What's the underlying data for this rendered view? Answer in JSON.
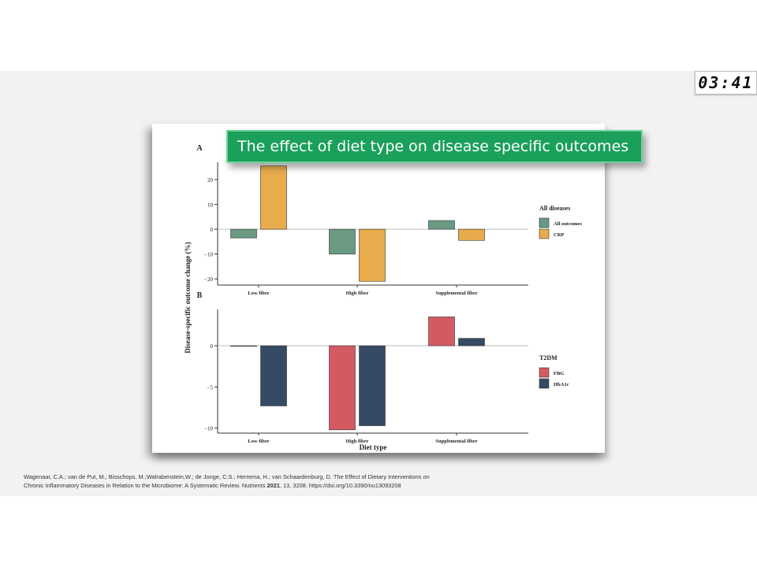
{
  "timer": "03:41",
  "banner_title": "The effect of diet type on disease specific outcomes",
  "citation": {
    "line1": "Wagenaar, C.A.; van de Put, M.; Bisschops, M.;Walrabenstein,W.; de Jonge, C.S.; Herrema, H.; van Schaardenburg, D. The Effect of Dietary Interventions on",
    "line2_pre": "Chronic Inflammatory Diseases in Relation to the Microbiome: A Systematic Review. Nutrients ",
    "line2_year": "2021",
    "line2_post": ", 13, 3208. https://doi.org/10.3390/nu13093208"
  },
  "colors": {
    "all_outcomes": "#6a9a82",
    "crp": "#e8ac4c",
    "fbg": "#d45a62",
    "hba1c": "#374a63",
    "banner": "#1aa05a"
  },
  "chart_data": [
    {
      "type": "bar",
      "panel_label": "A",
      "categories": [
        "Low fiber",
        "High fiber",
        "Supplemental fiber"
      ],
      "series": [
        {
          "name": "All outcomes",
          "values": [
            -3.5,
            -10,
            3.5
          ]
        },
        {
          "name": "CRP",
          "values": [
            25.5,
            -21,
            -4.5
          ]
        }
      ],
      "yticks": [
        20,
        10,
        0,
        -10,
        -20
      ],
      "ylim": [
        -22.5,
        27
      ],
      "legend_title": "All diseases",
      "legend_position": "right"
    },
    {
      "type": "bar",
      "panel_label": "B",
      "categories": [
        "Low fiber",
        "High fiber",
        "Supplemental fiber"
      ],
      "series": [
        {
          "name": "FBG",
          "values": [
            -0.05,
            -10.2,
            3.5
          ]
        },
        {
          "name": "HbA1c",
          "values": [
            -7.3,
            -9.7,
            0.9
          ]
        }
      ],
      "yticks": [
        0,
        -5,
        -10
      ],
      "ylim": [
        -10.6,
        4.4
      ],
      "legend_title": "T2DM",
      "legend_position": "right"
    }
  ],
  "shared_axes": {
    "ylabel": "Disease-specific outcome change (%)",
    "xlabel": "Diet type"
  }
}
